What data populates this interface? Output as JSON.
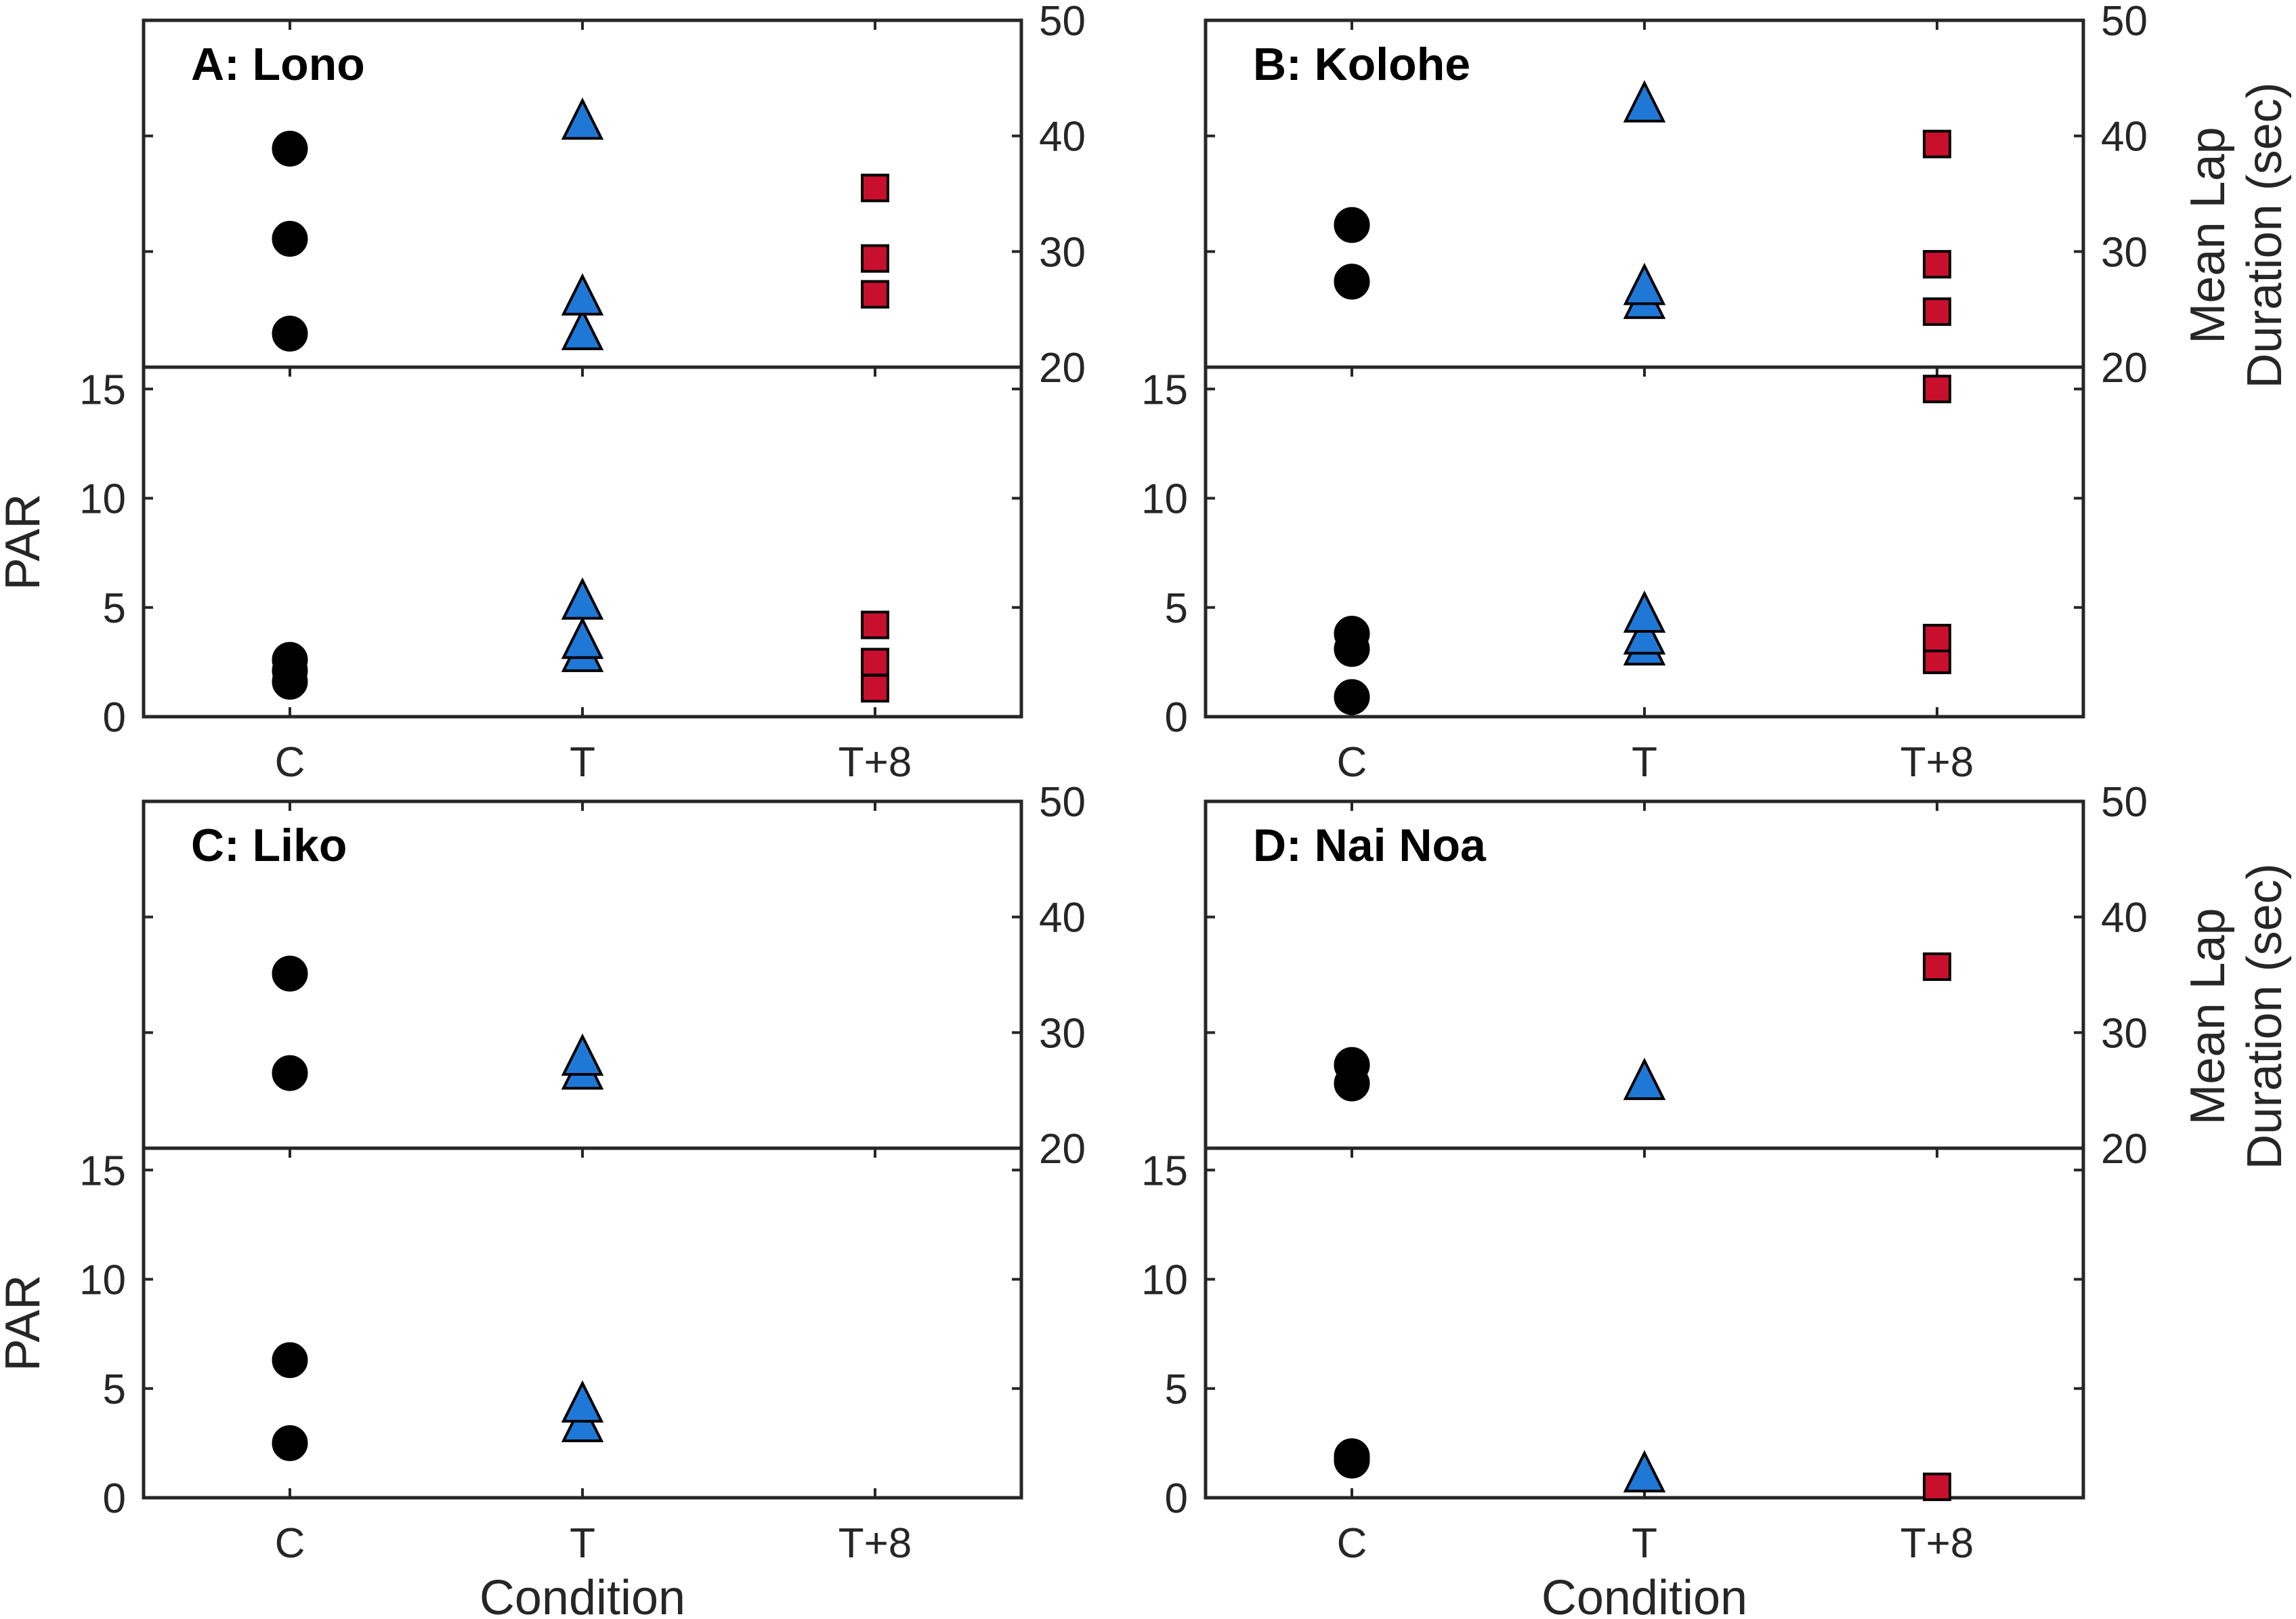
{
  "chart_data": {
    "type": "scatter",
    "x_categories": [
      "C",
      "T",
      "T+8"
    ],
    "xlabel": "Condition",
    "top_axis": {
      "ylabel": [
        "Mean Lap",
        "Duration (sec)"
      ],
      "ylim": [
        20,
        50
      ],
      "ticks": [
        20,
        30,
        40,
        50
      ]
    },
    "bottom_axis": {
      "ylabel": "PAR",
      "ylim": [
        0,
        16
      ],
      "ticks": [
        0,
        5,
        10,
        15
      ]
    },
    "marker_colors": {
      "C": "#000000",
      "T": "#1f78d6",
      "T+8": "#c8102e"
    },
    "marker_shapes": {
      "C": "circle",
      "T": "triangle",
      "T+8": "square"
    },
    "panels": [
      {
        "title": "A: Lono",
        "lap_duration": {
          "C": [
            22.9,
            31.1,
            38.9
          ],
          "T": [
            22.9,
            25.9,
            41.1
          ],
          "T+8": [
            26.3,
            29.4,
            35.5
          ]
        },
        "PAR": {
          "C": [
            1.6,
            2.1,
            2.6
          ],
          "T": [
            2.8,
            3.4,
            5.2
          ],
          "T+8": [
            1.3,
            2.5,
            4.2
          ]
        }
      },
      {
        "title": "B: Kolohe",
        "lap_duration": {
          "C": [
            27.4,
            32.3
          ],
          "T": [
            25.6,
            26.8,
            42.6
          ],
          "T+8": [
            24.8,
            28.9,
            39.3
          ]
        },
        "PAR": {
          "C": [
            0.9,
            3.1,
            3.8
          ],
          "T": [
            3.1,
            3.6,
            4.6
          ],
          "T+8": [
            2.6,
            3.6,
            15.0
          ]
        }
      },
      {
        "title": "C: Liko",
        "lap_duration": {
          "C": [
            26.5,
            35.1
          ],
          "T": [
            26.5,
            27.7
          ],
          "T+8": []
        },
        "PAR": {
          "C": [
            2.5,
            6.3
          ],
          "T": [
            3.3,
            4.2
          ],
          "T+8": []
        }
      },
      {
        "title": "D: Nai Noa",
        "lap_duration": {
          "C": [
            25.6,
            27.2
          ],
          "T": [
            25.6
          ],
          "T+8": [
            35.7
          ]
        },
        "PAR": {
          "C": [
            1.7,
            1.9
          ],
          "T": [
            1.0
          ],
          "T+8": [
            0.5
          ]
        }
      }
    ]
  }
}
